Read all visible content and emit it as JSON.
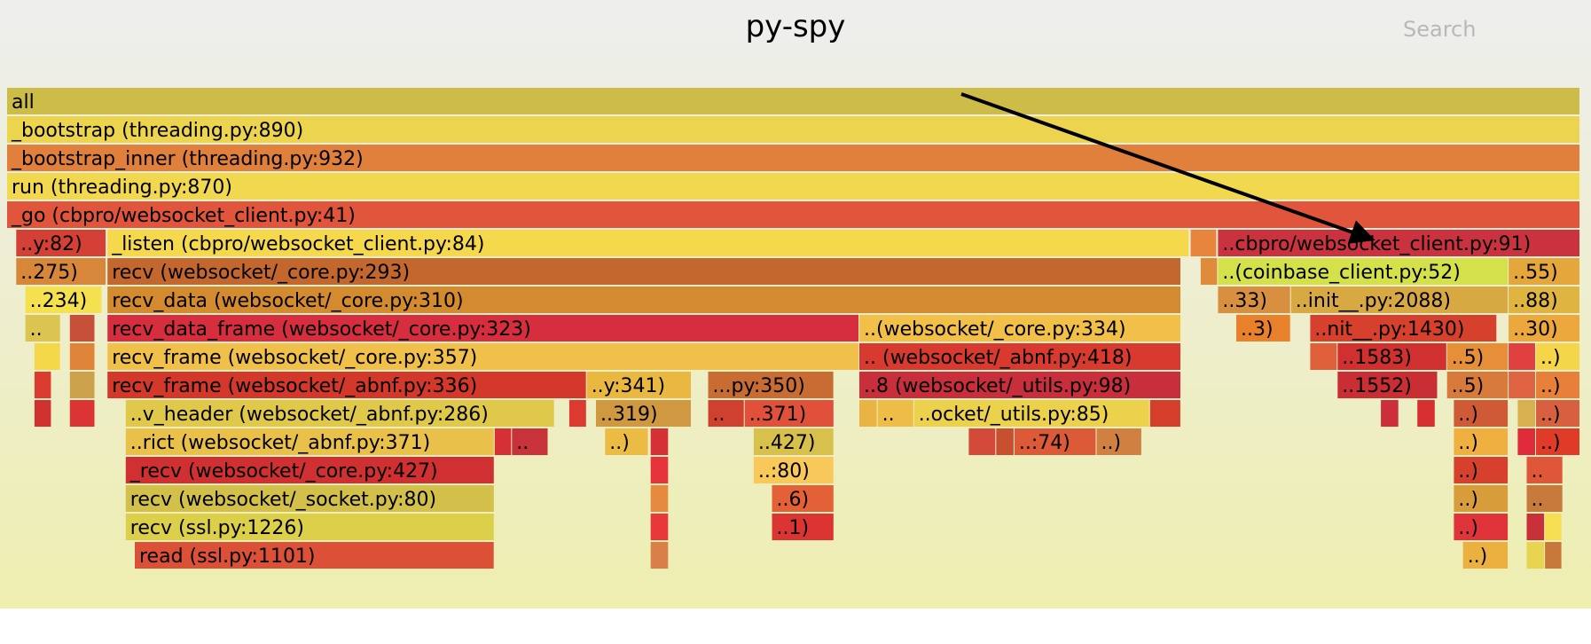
{
  "title": "py-spy",
  "search_label": "Search",
  "chart_data": {
    "type": "flamegraph",
    "title": "py-spy",
    "annotation": "arrow pointing to ..cbpro/websocket_client.py:91",
    "frames": [
      {
        "label": "all",
        "depth": 0,
        "start": 0,
        "width": 1000,
        "color": "#cdbc47"
      },
      {
        "label": "_bootstrap (threading.py:890)",
        "depth": 1,
        "start": 0,
        "width": 1000,
        "color": "#edd44f"
      },
      {
        "label": "_bootstrap_inner (threading.py:932)",
        "depth": 2,
        "start": 0,
        "width": 1000,
        "color": "#e0803c"
      },
      {
        "label": "run (threading.py:870)",
        "depth": 3,
        "start": 0,
        "width": 1000,
        "color": "#f2d84e"
      },
      {
        "label": "_go (cbpro/websocket_client.py:41)",
        "depth": 4,
        "start": 0,
        "width": 1000,
        "color": "#e0553c"
      },
      {
        "label": "..y:82)",
        "depth": 5,
        "start": 5.8,
        "width": 57.4,
        "color": "#d43f36"
      },
      {
        "label": "_listen (cbpro/websocket_client.py:84)",
        "depth": 5,
        "start": 63.8,
        "width": 687.7,
        "color": "#f5d84c"
      },
      {
        "label": "",
        "depth": 5,
        "start": 752.3,
        "width": 16.8,
        "color": "#e8843c"
      },
      {
        "label": "..cbpro/websocket_client.py:91)",
        "depth": 5,
        "start": 769.7,
        "width": 230.3,
        "color": "#c9323e"
      },
      {
        "label": "..275)",
        "depth": 6,
        "start": 5.8,
        "width": 57.4,
        "color": "#d8873a"
      },
      {
        "label": "recv (websocket/_core.py:293)",
        "depth": 6,
        "start": 63.8,
        "width": 682.5,
        "color": "#c4672e"
      },
      {
        "label": "",
        "depth": 6,
        "start": 758.7,
        "width": 11.0,
        "color": "#e08a3c"
      },
      {
        "label": "..(coinbase_client.py:52)",
        "depth": 6,
        "start": 769.7,
        "width": 184.7,
        "color": "#d4e14a"
      },
      {
        "label": "..55)",
        "depth": 6,
        "start": 954.4,
        "width": 45.6,
        "color": "#e5a63c"
      },
      {
        "label": "..234)",
        "depth": 7,
        "start": 11.6,
        "width": 49.0,
        "color": "#f5e04f"
      },
      {
        "label": "recv_data (websocket/_core.py:310)",
        "depth": 7,
        "start": 63.8,
        "width": 682.5,
        "color": "#d48a2e"
      },
      {
        "label": "..33)",
        "depth": 7,
        "start": 769.7,
        "width": 46.4,
        "color": "#d89040"
      },
      {
        "label": "",
        "depth": 7,
        "start": 816.1,
        "width": 17.4,
        "color": "#e49a40"
      },
      {
        "label": "..init__.py:2088)",
        "depth": 7,
        "start": 816.1,
        "width": 138.3,
        "color": "#d8a843"
      },
      {
        "label": "..88)",
        "depth": 7,
        "start": 954.4,
        "width": 45.6,
        "color": "#e0b440"
      },
      {
        "label": "..",
        "depth": 8,
        "start": 11.6,
        "width": 22.6,
        "color": "#dcc450"
      },
      {
        "label": "",
        "depth": 8,
        "start": 39.9,
        "width": 16.2,
        "color": "#c8503a"
      },
      {
        "label": "recv_data_frame (websocket/_core.py:323)",
        "depth": 8,
        "start": 63.8,
        "width": 477.9,
        "color": "#d62e3e"
      },
      {
        "label": "..(websocket/_core.py:334)",
        "depth": 8,
        "start": 541.7,
        "width": 204.6,
        "color": "#f2c048"
      },
      {
        "label": "..3)",
        "depth": 8,
        "start": 781.3,
        "width": 34.8,
        "color": "#e8802c"
      },
      {
        "label": "..nit__.py:1430)",
        "depth": 8,
        "start": 828.3,
        "width": 118.9,
        "color": "#d8402e"
      },
      {
        "label": "..30)",
        "depth": 8,
        "start": 954.4,
        "width": 45.6,
        "color": "#eca83c"
      },
      {
        "label": "",
        "depth": 9,
        "start": 17.4,
        "width": 16.8,
        "color": "#f5d84a"
      },
      {
        "label": "",
        "depth": 9,
        "start": 39.9,
        "width": 16.2,
        "color": "#e0843a"
      },
      {
        "label": "recv_frame (websocket/_core.py:357)",
        "depth": 9,
        "start": 63.8,
        "width": 477.9,
        "color": "#f0c04a"
      },
      {
        "label": ".. (websocket/_abnf.py:418)",
        "depth": 9,
        "start": 541.7,
        "width": 204.6,
        "color": "#d83a30"
      },
      {
        "label": "",
        "depth": 9,
        "start": 828.3,
        "width": 17.4,
        "color": "#e0603c"
      },
      {
        "label": "..1583)",
        "depth": 9,
        "start": 845.7,
        "width": 69.6,
        "color": "#d03030"
      },
      {
        "label": "..5)",
        "depth": 9,
        "start": 915.3,
        "width": 39.1,
        "color": "#e68e38"
      },
      {
        "label": "",
        "depth": 9,
        "start": 954.4,
        "width": 17.4,
        "color": "#e04040"
      },
      {
        "label": "..)",
        "depth": 9,
        "start": 971.8,
        "width": 28.2,
        "color": "#f5d64a"
      },
      {
        "label": "",
        "depth": 10,
        "start": 17.4,
        "width": 11.0,
        "color": "#dc3c30"
      },
      {
        "label": "",
        "depth": 10,
        "start": 39.9,
        "width": 16.2,
        "color": "#cca24c"
      },
      {
        "label": "recv_frame (websocket/_abnf.py:336)",
        "depth": 10,
        "start": 63.8,
        "width": 304.7,
        "color": "#d4382a"
      },
      {
        "label": "..y:341)",
        "depth": 10,
        "start": 368.5,
        "width": 66.7,
        "color": "#eab740"
      },
      {
        "label": "...py:350)",
        "depth": 10,
        "start": 445.6,
        "width": 80.1,
        "color": "#c96c34"
      },
      {
        "label": "..8 (websocket/_utils.py:98)",
        "depth": 10,
        "start": 541.7,
        "width": 204.6,
        "color": "#c82e3c"
      },
      {
        "label": "..1552)",
        "depth": 10,
        "start": 845.7,
        "width": 63.8,
        "color": "#c82e34"
      },
      {
        "label": "..5)",
        "depth": 10,
        "start": 915.3,
        "width": 39.1,
        "color": "#d87a3c"
      },
      {
        "label": "",
        "depth": 10,
        "start": 954.4,
        "width": 17.4,
        "color": "#e06444"
      },
      {
        "label": "..)",
        "depth": 10,
        "start": 971.8,
        "width": 28.2,
        "color": "#e8803a"
      },
      {
        "label": "",
        "depth": 11,
        "start": 17.4,
        "width": 11.0,
        "color": "#d03030"
      },
      {
        "label": "",
        "depth": 11,
        "start": 39.9,
        "width": 16.2,
        "color": "#dc3434"
      },
      {
        "label": "..v_header (websocket/_abnf.py:286)",
        "depth": 11,
        "start": 75.4,
        "width": 272.8,
        "color": "#e0c84a"
      },
      {
        "label": "",
        "depth": 11,
        "start": 357.3,
        "width": 11.2,
        "color": "#dc3a30"
      },
      {
        "label": "..319)",
        "depth": 11,
        "start": 374.3,
        "width": 60.9,
        "color": "#d09840"
      },
      {
        "label": "..",
        "depth": 11,
        "start": 445.6,
        "width": 23.2,
        "color": "#d0402e"
      },
      {
        "label": "..371)",
        "depth": 11,
        "start": 468.8,
        "width": 57.0,
        "color": "#e0503a"
      },
      {
        "label": "",
        "depth": 11,
        "start": 541.7,
        "width": 11.6,
        "color": "#eab444"
      },
      {
        "label": "..",
        "depth": 11,
        "start": 553.3,
        "width": 23.2,
        "color": "#eebd48"
      },
      {
        "label": "..ocket/_utils.py:85)",
        "depth": 11,
        "start": 576.5,
        "width": 150.0,
        "color": "#ecd24c"
      },
      {
        "label": "",
        "depth": 11,
        "start": 726.5,
        "width": 19.8,
        "color": "#d43e2a"
      },
      {
        "label": "",
        "depth": 11,
        "start": 873.2,
        "width": 11.6,
        "color": "#cc2e3a"
      },
      {
        "label": "",
        "depth": 11,
        "start": 896.4,
        "width": 11.6,
        "color": "#d83030"
      },
      {
        "label": "..)",
        "depth": 11,
        "start": 919.6,
        "width": 34.8,
        "color": "#d05a36"
      },
      {
        "label": "",
        "depth": 11,
        "start": 960.2,
        "width": 11.6,
        "color": "#d8b050"
      },
      {
        "label": "..)",
        "depth": 11,
        "start": 971.8,
        "width": 28.2,
        "color": "#d86040"
      },
      {
        "label": "..rict (websocket/_abnf.py:371)",
        "depth": 12,
        "start": 75.4,
        "width": 234.5,
        "color": "#e8c04a"
      },
      {
        "label": "",
        "depth": 12,
        "start": 309.9,
        "width": 11.0,
        "color": "#d43036"
      },
      {
        "label": "..",
        "depth": 12,
        "start": 320.9,
        "width": 23.2,
        "color": "#c8323a"
      },
      {
        "label": "..)",
        "depth": 12,
        "start": 380.1,
        "width": 27.8,
        "color": "#ecbb44"
      },
      {
        "label": "",
        "depth": 12,
        "start": 409.1,
        "width": 11.6,
        "color": "#d43036"
      },
      {
        "label": "..427)",
        "depth": 12,
        "start": 474.6,
        "width": 51.2,
        "color": "#d8c04c"
      },
      {
        "label": "",
        "depth": 12,
        "start": 611.3,
        "width": 17.4,
        "color": "#d44a3a"
      },
      {
        "label": "",
        "depth": 12,
        "start": 628.7,
        "width": 11.6,
        "color": "#c85030"
      },
      {
        "label": "..:74)",
        "depth": 12,
        "start": 640.3,
        "width": 52.2,
        "color": "#dc5a38"
      },
      {
        "label": "..)",
        "depth": 12,
        "start": 692.5,
        "width": 29.0,
        "color": "#d08040"
      },
      {
        "label": "..)",
        "depth": 12,
        "start": 919.6,
        "width": 34.8,
        "color": "#f0b040"
      },
      {
        "label": "",
        "depth": 12,
        "start": 960.2,
        "width": 11.6,
        "color": "#e02c3a"
      },
      {
        "label": "..)",
        "depth": 12,
        "start": 971.8,
        "width": 28.2,
        "color": "#e03a28"
      },
      {
        "label": "_recv (websocket/_core.py:427)",
        "depth": 13,
        "start": 75.4,
        "width": 234.5,
        "color": "#d03032"
      },
      {
        "label": "",
        "depth": 13,
        "start": 409.1,
        "width": 11.6,
        "color": "#e6323a"
      },
      {
        "label": "..:80)",
        "depth": 13,
        "start": 474.6,
        "width": 51.2,
        "color": "#f8c85a"
      },
      {
        "label": "..)",
        "depth": 13,
        "start": 919.6,
        "width": 34.8,
        "color": "#d8402e"
      },
      {
        "label": "..",
        "depth": 13,
        "start": 965.9,
        "width": 23.2,
        "color": "#e05638"
      },
      {
        "label": "recv (websocket/_socket.py:80)",
        "depth": 14,
        "start": 75.4,
        "width": 234.5,
        "color": "#d2c04a"
      },
      {
        "label": "",
        "depth": 14,
        "start": 409.1,
        "width": 11.6,
        "color": "#e68a40"
      },
      {
        "label": "..6)",
        "depth": 14,
        "start": 486.2,
        "width": 39.6,
        "color": "#e46036"
      },
      {
        "label": "..)",
        "depth": 14,
        "start": 919.6,
        "width": 34.8,
        "color": "#d89c3a"
      },
      {
        "label": "..",
        "depth": 14,
        "start": 965.9,
        "width": 23.2,
        "color": "#c87a3c"
      },
      {
        "label": "recv (ssl.py:1226)",
        "depth": 15,
        "start": 75.4,
        "width": 234.5,
        "color": "#dcd04a"
      },
      {
        "label": "",
        "depth": 15,
        "start": 409.1,
        "width": 11.6,
        "color": "#e8383a"
      },
      {
        "label": "..1)",
        "depth": 15,
        "start": 486.2,
        "width": 39.6,
        "color": "#dc3432"
      },
      {
        "label": "..)",
        "depth": 15,
        "start": 919.6,
        "width": 34.8,
        "color": "#e0343a"
      },
      {
        "label": "",
        "depth": 15,
        "start": 965.9,
        "width": 11.6,
        "color": "#c8303a"
      },
      {
        "label": "",
        "depth": 15,
        "start": 977.5,
        "width": 11.0,
        "color": "#f5de50"
      },
      {
        "label": "read (ssl.py:1101)",
        "depth": 16,
        "start": 81.2,
        "width": 228.7,
        "color": "#dc5038"
      },
      {
        "label": "",
        "depth": 16,
        "start": 409.1,
        "width": 11.6,
        "color": "#d88048"
      },
      {
        "label": "..)",
        "depth": 16,
        "start": 925.4,
        "width": 29.0,
        "color": "#ecb040"
      },
      {
        "label": "",
        "depth": 16,
        "start": 965.9,
        "width": 11.6,
        "color": "#e8d450"
      },
      {
        "label": "",
        "depth": 16,
        "start": 977.5,
        "width": 11.0,
        "color": "#c8783a"
      }
    ]
  }
}
